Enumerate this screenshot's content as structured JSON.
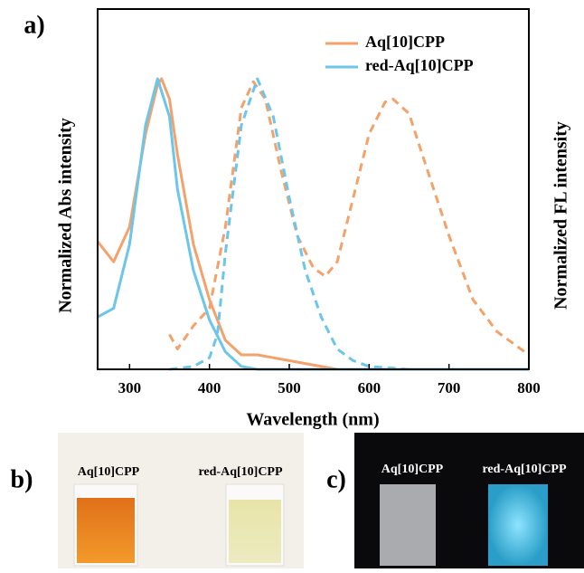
{
  "chart_data": {
    "type": "line",
    "panel_label": "a)",
    "x_label": "Wavelength (nm)",
    "y_label": "Normalized Abs intensity",
    "y2_label": "Normalized FL intensity",
    "xlim": [
      260,
      800
    ],
    "xticks": [
      300,
      400,
      500,
      600,
      700,
      800
    ],
    "ylim": [
      0,
      1.24
    ],
    "legend": "upper-right",
    "series": [
      {
        "name": "Aq[10]CPP",
        "color": "#f4a26b",
        "dashed": false,
        "legend": true,
        "x": [
          260,
          280,
          300,
          320,
          335,
          340,
          350,
          360,
          380,
          400,
          420,
          440,
          460,
          480,
          500,
          520,
          560,
          600,
          800
        ],
        "values": [
          0.44,
          0.37,
          0.49,
          0.81,
          0.98,
          1.0,
          0.93,
          0.74,
          0.43,
          0.24,
          0.1,
          0.05,
          0.05,
          0.04,
          0.03,
          0.02,
          0,
          0,
          0
        ]
      },
      {
        "name": "red-Aq[10]CPP",
        "color": "#6cc5ea",
        "dashed": false,
        "legend": true,
        "x": [
          260,
          280,
          300,
          320,
          335,
          350,
          360,
          380,
          400,
          420,
          440,
          460,
          500,
          800
        ],
        "values": [
          0.18,
          0.21,
          0.43,
          0.84,
          1.0,
          0.87,
          0.62,
          0.34,
          0.17,
          0.06,
          0.01,
          0,
          0,
          0
        ]
      },
      {
        "color": "#f4a26b",
        "dashed": true,
        "legend": false,
        "x": [
          350,
          360,
          380,
          400,
          420,
          440,
          455,
          470,
          490,
          510,
          530,
          545,
          560,
          580,
          600,
          620,
          630,
          650,
          670,
          700,
          730,
          760,
          800
        ],
        "values": [
          0.12,
          0.07,
          0.15,
          0.21,
          0.49,
          0.9,
          0.99,
          0.93,
          0.68,
          0.46,
          0.35,
          0.32,
          0.37,
          0.59,
          0.81,
          0.92,
          0.93,
          0.88,
          0.71,
          0.46,
          0.24,
          0.13,
          0.05
        ]
      },
      {
        "color": "#6cc5ea",
        "dashed": true,
        "legend": false,
        "x": [
          350,
          380,
          400,
          410,
          420,
          440,
          460,
          480,
          500,
          520,
          540,
          560,
          580,
          600,
          650,
          800
        ],
        "values": [
          0,
          0.01,
          0.04,
          0.12,
          0.4,
          0.84,
          1.0,
          0.87,
          0.59,
          0.34,
          0.18,
          0.07,
          0.03,
          0.01,
          0,
          0
        ]
      }
    ]
  },
  "photos": [
    {
      "label": "b)",
      "samples": [
        "Aq[10]CPP",
        "red-Aq[10]CPP"
      ]
    },
    {
      "label": "c)",
      "samples": [
        "Aq[10]CPP",
        "red-Aq[10]CPP"
      ]
    }
  ]
}
